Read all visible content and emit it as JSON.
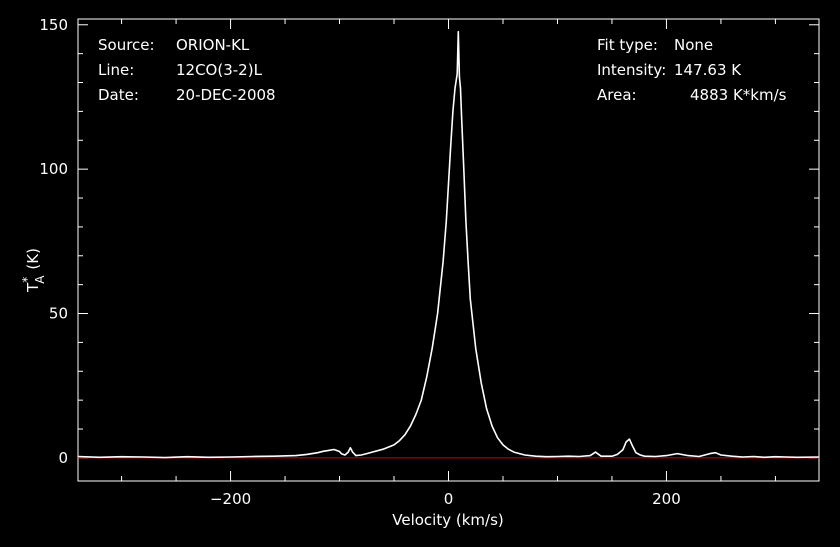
{
  "chart_data": {
    "type": "line",
    "xlabel": "Velocity (km/s)",
    "ylabel": {
      "main": "T",
      "superscript": "*",
      "subscript": "A",
      "unit": "(K)"
    },
    "xlim": [
      -340,
      340
    ],
    "ylim": [
      -8,
      152
    ],
    "x_ticks": [
      -200,
      0,
      200
    ],
    "y_ticks": [
      0,
      50,
      100,
      150
    ],
    "grid": false,
    "colors": {
      "background": "#000000",
      "axes": "#ffffff",
      "spectrum": "#ffffff",
      "baseline": "#cc0000"
    },
    "info_left": [
      {
        "key": "Source:",
        "value": "ORION-KL"
      },
      {
        "key": "Line:",
        "value": "12CO(3-2)L"
      },
      {
        "key": "Date:",
        "value": "20-DEC-2008"
      }
    ],
    "info_right": [
      {
        "key": "Fit type:",
        "value": "None"
      },
      {
        "key": "Intensity:",
        "value": "147.63 K"
      },
      {
        "key": "Area:",
        "value": "4883 K*km/s"
      }
    ],
    "baseline": {
      "y": 0
    },
    "series": [
      {
        "x": [
          -340,
          -320,
          -300,
          -280,
          -260,
          -240,
          -220,
          -200,
          -180,
          -160,
          -140,
          -130,
          -120,
          -115,
          -110,
          -105,
          -100,
          -98,
          -95,
          -92,
          -90,
          -88,
          -85,
          -80,
          -75,
          -70,
          -60,
          -50,
          -45,
          -40,
          -35,
          -30,
          -25,
          -20,
          -15,
          -10,
          -5,
          -2,
          0,
          2,
          4,
          6,
          8,
          9,
          10,
          11,
          12,
          14,
          16,
          18,
          20,
          25,
          30,
          35,
          40,
          45,
          50,
          55,
          60,
          70,
          80,
          90,
          100,
          110,
          120,
          130,
          135,
          140,
          150,
          155,
          160,
          163,
          166,
          169,
          172,
          176,
          180,
          190,
          200,
          210,
          220,
          230,
          240,
          245,
          250,
          260,
          270,
          280,
          290,
          300,
          310,
          320,
          340
        ],
        "y": [
          0.5,
          0.2,
          0.4,
          0.3,
          0.1,
          0.4,
          0.2,
          0.3,
          0.5,
          0.6,
          0.8,
          1.2,
          1.8,
          2.3,
          2.6,
          2.9,
          2.2,
          1.4,
          1.0,
          2.0,
          3.5,
          2.0,
          0.8,
          1.0,
          1.5,
          2.0,
          3.0,
          4.5,
          6.0,
          8.0,
          11.0,
          15.0,
          20.0,
          28.0,
          38.0,
          50.0,
          68.0,
          82.0,
          95.0,
          108.0,
          120.0,
          128.0,
          133.0,
          147.6,
          132.0,
          128.0,
          118.0,
          100.0,
          82.0,
          68.0,
          55.0,
          38.0,
          26.0,
          17.0,
          11.0,
          7.0,
          4.5,
          3.0,
          2.0,
          1.0,
          0.6,
          0.4,
          0.5,
          0.6,
          0.5,
          0.8,
          2.0,
          0.6,
          0.6,
          1.2,
          2.8,
          5.5,
          6.5,
          4.0,
          1.8,
          1.0,
          0.6,
          0.5,
          0.8,
          1.5,
          0.8,
          0.5,
          1.5,
          1.8,
          1.0,
          0.6,
          0.3,
          0.5,
          0.2,
          0.4,
          0.3,
          0.2,
          0.3
        ]
      }
    ]
  }
}
